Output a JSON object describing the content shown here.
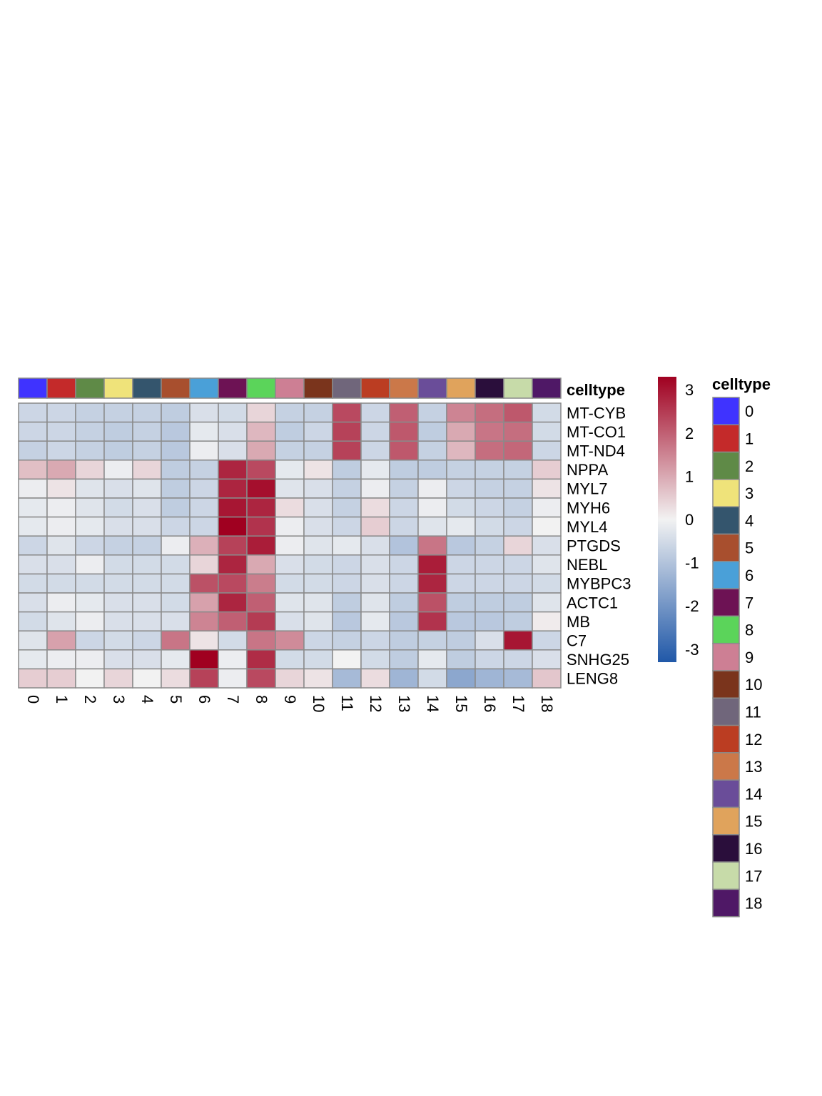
{
  "chart_data": {
    "type": "heatmap",
    "annotation_label": "celltype",
    "legend_title": "celltype",
    "columns": [
      "0",
      "1",
      "2",
      "3",
      "4",
      "5",
      "6",
      "7",
      "8",
      "9",
      "10",
      "11",
      "12",
      "13",
      "14",
      "15",
      "16",
      "17",
      "18"
    ],
    "rows": [
      "MT-CYB",
      "MT-CO1",
      "MT-ND4",
      "NPPA",
      "MYL7",
      "MYH6",
      "MYL4",
      "PTGDS",
      "NEBL",
      "MYBPC3",
      "ACTC1",
      "MB",
      "C7",
      "SNHG25",
      "LENG8"
    ],
    "celltype_colors": [
      "#3f33ff",
      "#c42a2a",
      "#5f8a47",
      "#efe37a",
      "#34556d",
      "#a84f2e",
      "#4aa0d8",
      "#6d1254",
      "#5bd45a",
      "#cd7f94",
      "#7a341c",
      "#70667b",
      "#bb3d22",
      "#cb7849",
      "#6a4d99",
      "#e0a35c",
      "#2a0e3b",
      "#c7dba9",
      "#4f1866"
    ],
    "color_scale": {
      "min": -3.3,
      "max": 3.3,
      "ticks": [
        -3,
        -2,
        -1,
        0,
        1,
        2,
        3
      ],
      "tick_labels": [
        "-3",
        "-2",
        "-1",
        "0",
        "1",
        "2",
        "3"
      ],
      "low_color": "#2058a8",
      "mid_color": "#f2f2f2",
      "high_color": "#a00020"
    },
    "values": [
      [
        -0.6,
        -0.6,
        -0.7,
        -0.7,
        -0.7,
        -0.8,
        -0.4,
        -0.5,
        0.4,
        -0.7,
        -0.7,
        2.3,
        -0.6,
        2.0,
        -0.7,
        1.5,
        1.8,
        2.1,
        -0.5
      ],
      [
        -0.6,
        -0.6,
        -0.7,
        -0.8,
        -0.7,
        -0.9,
        -0.2,
        -0.4,
        0.8,
        -0.8,
        -0.6,
        2.4,
        -0.6,
        2.1,
        -0.8,
        1.0,
        1.7,
        1.8,
        -0.5
      ],
      [
        -0.7,
        -0.6,
        -0.7,
        -0.8,
        -0.7,
        -0.9,
        -0.1,
        -0.4,
        1.0,
        -0.7,
        -0.7,
        2.4,
        -0.6,
        2.1,
        -0.7,
        0.8,
        1.8,
        1.9,
        -0.6
      ],
      [
        0.7,
        1.0,
        0.4,
        -0.1,
        0.4,
        -0.8,
        -0.7,
        2.8,
        2.3,
        -0.2,
        0.2,
        -0.8,
        -0.2,
        -0.8,
        -0.8,
        -0.7,
        -0.7,
        -0.7,
        0.5
      ],
      [
        -0.1,
        0.2,
        -0.3,
        -0.4,
        -0.3,
        -0.8,
        -0.6,
        2.8,
        3.1,
        -0.3,
        -0.4,
        -0.7,
        -0.1,
        -0.7,
        -0.1,
        -0.6,
        -0.7,
        -0.7,
        0.2
      ],
      [
        -0.2,
        -0.1,
        -0.3,
        -0.5,
        -0.4,
        -0.8,
        -0.6,
        3.0,
        2.8,
        0.3,
        -0.4,
        -0.7,
        0.3,
        -0.6,
        -0.1,
        -0.5,
        -0.6,
        -0.7,
        -0.1
      ],
      [
        -0.2,
        -0.1,
        -0.2,
        -0.4,
        -0.4,
        -0.6,
        -0.6,
        3.3,
        2.6,
        -0.1,
        -0.4,
        -0.6,
        0.5,
        -0.6,
        -0.3,
        -0.2,
        -0.5,
        -0.6,
        0.0
      ],
      [
        -0.6,
        -0.3,
        -0.6,
        -0.7,
        -0.7,
        -0.1,
        0.9,
        2.4,
        2.9,
        -0.1,
        -0.3,
        -0.2,
        -0.4,
        -1.0,
        1.7,
        -0.9,
        -0.7,
        0.4,
        -0.4
      ],
      [
        -0.4,
        -0.4,
        -0.1,
        -0.5,
        -0.5,
        -0.5,
        0.4,
        2.8,
        1.0,
        -0.4,
        -0.5,
        -0.6,
        -0.4,
        -0.6,
        2.9,
        -0.6,
        -0.6,
        -0.6,
        -0.3
      ],
      [
        -0.5,
        -0.5,
        -0.5,
        -0.5,
        -0.5,
        -0.5,
        2.2,
        2.3,
        1.6,
        -0.5,
        -0.5,
        -0.6,
        -0.4,
        -0.6,
        2.8,
        -0.6,
        -0.6,
        -0.6,
        -0.5
      ],
      [
        -0.4,
        -0.1,
        -0.2,
        -0.4,
        -0.4,
        -0.5,
        1.1,
        2.8,
        2.0,
        -0.3,
        -0.3,
        -0.8,
        -0.3,
        -0.8,
        2.2,
        -0.8,
        -0.8,
        -0.8,
        -0.3
      ],
      [
        -0.5,
        -0.3,
        -0.1,
        -0.4,
        -0.4,
        -0.4,
        1.5,
        2.0,
        2.5,
        -0.4,
        -0.3,
        -0.9,
        -0.2,
        -0.9,
        2.6,
        -0.9,
        -0.9,
        -0.8,
        0.1
      ],
      [
        -0.3,
        1.1,
        -0.6,
        -0.5,
        -0.6,
        1.7,
        0.2,
        -0.5,
        1.7,
        1.4,
        -0.6,
        -0.7,
        -0.6,
        -0.8,
        -0.7,
        -0.8,
        -0.4,
        3.0,
        -0.6
      ],
      [
        -0.2,
        -0.1,
        -0.1,
        -0.4,
        -0.4,
        -0.2,
        3.3,
        -0.1,
        2.7,
        -0.5,
        -0.5,
        0.0,
        -0.5,
        -0.8,
        -0.2,
        -0.8,
        -0.6,
        -0.6,
        -0.4
      ],
      [
        0.5,
        0.5,
        0.0,
        0.4,
        0.0,
        0.3,
        2.4,
        -0.1,
        2.3,
        0.4,
        0.2,
        -1.2,
        0.3,
        -1.3,
        -0.5,
        -1.6,
        -1.3,
        -1.2,
        0.6
      ]
    ]
  }
}
